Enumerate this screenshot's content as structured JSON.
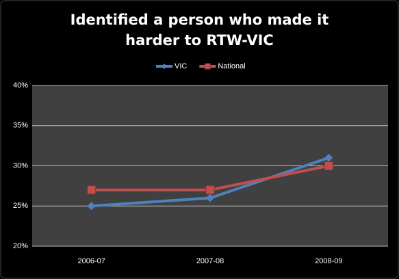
{
  "chart_data": {
    "type": "line",
    "title": "Identified a person who made it harder to RTW-VIC",
    "categories": [
      "2006-07",
      "2007-08",
      "2008-09"
    ],
    "series": [
      {
        "name": "VIC",
        "color": "#4f81bd",
        "marker": "diamond",
        "values": [
          25,
          26,
          31
        ]
      },
      {
        "name": "National",
        "color": "#c0504d",
        "marker": "square",
        "values": [
          27,
          27,
          30
        ]
      }
    ],
    "ylim": [
      20,
      40
    ],
    "yticks": [
      {
        "value": 20,
        "label": "20%"
      },
      {
        "value": 25,
        "label": "25%"
      },
      {
        "value": 30,
        "label": "30%"
      },
      {
        "value": 35,
        "label": "35%"
      },
      {
        "value": 40,
        "label": "40%"
      }
    ],
    "grid": true,
    "legend": "top"
  }
}
